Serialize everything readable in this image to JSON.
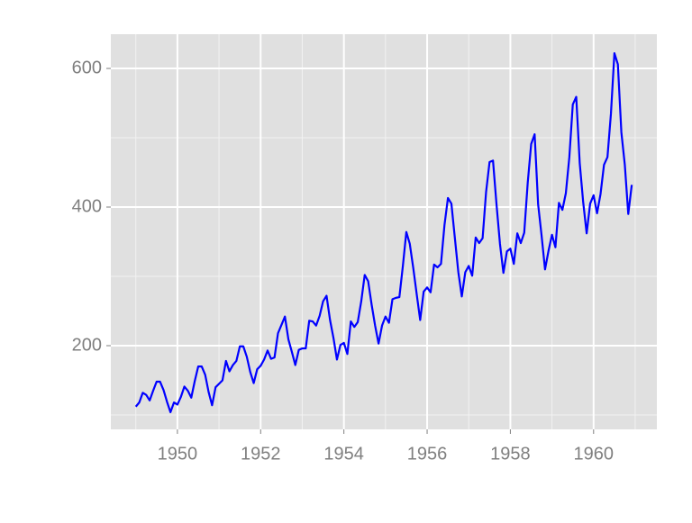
{
  "chart_data": {
    "type": "line",
    "x": [
      1949,
      1949.083,
      1949.167,
      1949.25,
      1949.333,
      1949.417,
      1949.5,
      1949.583,
      1949.667,
      1949.75,
      1949.833,
      1949.917,
      1950,
      1950.083,
      1950.167,
      1950.25,
      1950.333,
      1950.417,
      1950.5,
      1950.583,
      1950.667,
      1950.75,
      1950.833,
      1950.917,
      1951,
      1951.083,
      1951.167,
      1951.25,
      1951.333,
      1951.417,
      1951.5,
      1951.583,
      1951.667,
      1951.75,
      1951.833,
      1951.917,
      1952,
      1952.083,
      1952.167,
      1952.25,
      1952.333,
      1952.417,
      1952.5,
      1952.583,
      1952.667,
      1952.75,
      1952.833,
      1952.917,
      1953,
      1953.083,
      1953.167,
      1953.25,
      1953.333,
      1953.417,
      1953.5,
      1953.583,
      1953.667,
      1953.75,
      1953.833,
      1953.917,
      1954,
      1954.083,
      1954.167,
      1954.25,
      1954.333,
      1954.417,
      1954.5,
      1954.583,
      1954.667,
      1954.75,
      1954.833,
      1954.917,
      1955,
      1955.083,
      1955.167,
      1955.25,
      1955.333,
      1955.417,
      1955.5,
      1955.583,
      1955.667,
      1955.75,
      1955.833,
      1955.917,
      1956,
      1956.083,
      1956.167,
      1956.25,
      1956.333,
      1956.417,
      1956.5,
      1956.583,
      1956.667,
      1956.75,
      1956.833,
      1956.917,
      1957,
      1957.083,
      1957.167,
      1957.25,
      1957.333,
      1957.417,
      1957.5,
      1957.583,
      1957.667,
      1957.75,
      1957.833,
      1957.917,
      1958,
      1958.083,
      1958.167,
      1958.25,
      1958.333,
      1958.417,
      1958.5,
      1958.583,
      1958.667,
      1958.75,
      1958.833,
      1958.917,
      1959,
      1959.083,
      1959.167,
      1959.25,
      1959.333,
      1959.417,
      1959.5,
      1959.583,
      1959.667,
      1959.75,
      1959.833,
      1959.917,
      1960,
      1960.083,
      1960.167,
      1960.25,
      1960.333,
      1960.417,
      1960.5,
      1960.583,
      1960.667,
      1960.75,
      1960.833,
      1960.917
    ],
    "series": [
      {
        "color": "#0000ff",
        "values": [
          112,
          118,
          132,
          129,
          121,
          135,
          148,
          148,
          136,
          119,
          104,
          118,
          115,
          126,
          141,
          135,
          125,
          149,
          170,
          170,
          158,
          133,
          114,
          140,
          145,
          150,
          178,
          163,
          172,
          178,
          199,
          199,
          184,
          162,
          146,
          166,
          171,
          180,
          193,
          181,
          183,
          218,
          230,
          242,
          209,
          191,
          172,
          194,
          196,
          196,
          236,
          235,
          229,
          243,
          264,
          272,
          237,
          211,
          180,
          201,
          204,
          188,
          235,
          227,
          234,
          264,
          302,
          293,
          259,
          229,
          203,
          229,
          242,
          233,
          267,
          269,
          270,
          315,
          364,
          347,
          312,
          274,
          237,
          278,
          284,
          277,
          317,
          313,
          318,
          374,
          413,
          405,
          355,
          306,
          271,
          306,
          315,
          301,
          356,
          348,
          355,
          422,
          465,
          467,
          404,
          347,
          305,
          336,
          340,
          318,
          362,
          348,
          363,
          435,
          491,
          505,
          404,
          359,
          310,
          337,
          360,
          342,
          406,
          396,
          420,
          472,
          548,
          559,
          463,
          407,
          362,
          405,
          417,
          391,
          419,
          461,
          472,
          535,
          622,
          606,
          508,
          461,
          390,
          432
        ]
      }
    ],
    "xlim": [
      1948.4,
      1961.52
    ],
    "ylim": [
      79.2,
      649.4
    ],
    "xticks": [
      1950,
      1952,
      1954,
      1956,
      1958,
      1960
    ],
    "yticks": [
      200,
      400,
      600
    ],
    "x_minor_grid": [
      1949,
      1951,
      1953,
      1955,
      1957,
      1959,
      1961
    ],
    "y_minor_grid": [
      100,
      300,
      500
    ],
    "grid": true
  }
}
